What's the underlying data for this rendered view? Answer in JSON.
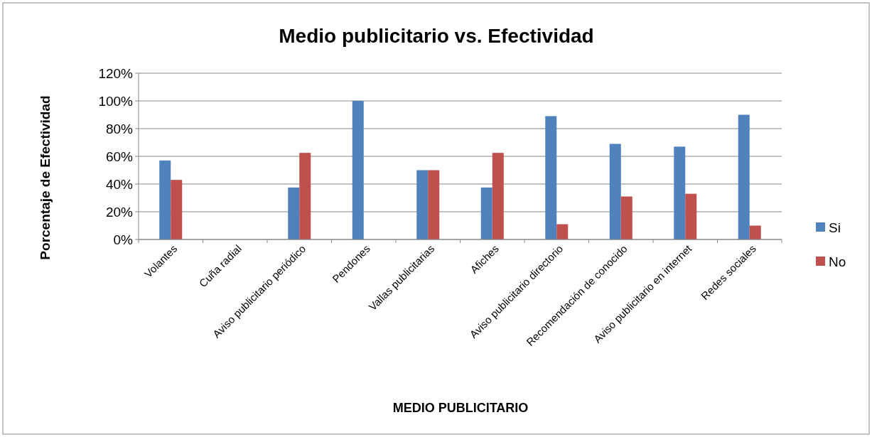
{
  "chart_data": {
    "type": "bar",
    "title": "Medio publicitario vs. Efectividad",
    "xlabel": "MEDIO PUBLICITARIO",
    "ylabel": "Porcentaje de Efectividad",
    "categories": [
      "Volantes",
      "Cuña radial",
      "Aviso publicitario periódico",
      "Pendones",
      "Vallas publicitarias",
      "Afiches",
      "Aviso publicitario directorio",
      "Recomendación de conocido",
      "Aviso publicitario en internet",
      "Redes sociales"
    ],
    "series": [
      {
        "name": "Si",
        "color": "#4f81bd",
        "values": [
          57,
          0,
          37.5,
          100,
          50,
          37.5,
          89,
          69,
          67,
          90
        ]
      },
      {
        "name": "No",
        "color": "#c0504d",
        "values": [
          43,
          0,
          62.5,
          0,
          50,
          62.5,
          11,
          31,
          33,
          10
        ]
      }
    ],
    "ylim": [
      0,
      120
    ],
    "yticks": [
      {
        "value": 0,
        "label": "0%"
      },
      {
        "value": 20,
        "label": "20%"
      },
      {
        "value": 40,
        "label": "40%"
      },
      {
        "value": 60,
        "label": "60%"
      },
      {
        "value": 80,
        "label": "80%"
      },
      {
        "value": 100,
        "label": "100%"
      },
      {
        "value": 120,
        "label": "120%"
      }
    ],
    "grid": "y",
    "legend": "right"
  }
}
